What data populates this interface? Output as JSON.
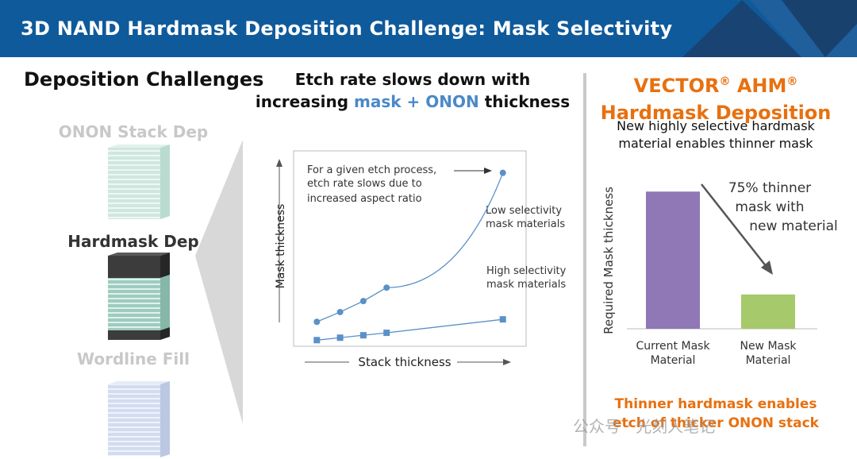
{
  "header": {
    "title": "3D NAND Hardmask Deposition Challenge: Mask Selectivity",
    "bg_color": "#0f5a9b"
  },
  "left": {
    "title": "Deposition Challenges",
    "stages": [
      {
        "label": "ONON Stack Dep",
        "state": "faded"
      },
      {
        "label": "Hardmask Dep",
        "state": "active"
      },
      {
        "label": "Wordline Fill",
        "state": "faded"
      }
    ]
  },
  "middle": {
    "title_line1": "Etch rate slows down with",
    "title_line2_pre": "increasing ",
    "title_line2_highlight": "mask + ONON",
    "title_line2_post": " thickness",
    "chart_data": {
      "type": "line",
      "xlabel": "Stack thickness",
      "ylabel": "Mask thickness",
      "x": [
        1,
        2,
        3,
        4,
        9
      ],
      "series": [
        {
          "name": "Low selectivity mask materials",
          "name_line1": "Low selectivity",
          "name_line2": "mask materials",
          "values": [
            2.0,
            2.8,
            3.7,
            4.8,
            14.2
          ],
          "marker": "circle"
        },
        {
          "name": "High selectivity mask materials",
          "name_line1": "High selectivity",
          "name_line2": "mask materials",
          "values": [
            0.5,
            0.7,
            0.9,
            1.1,
            2.2
          ],
          "marker": "square"
        }
      ],
      "xlim": [
        0,
        10
      ],
      "ylim": [
        0,
        16
      ],
      "annotation_lines": [
        "For a given etch process,",
        "etch rate slows due to",
        "increased aspect ratio"
      ],
      "line_color": "#5b90c8",
      "grid": false
    }
  },
  "right": {
    "brand_line1": "VECTOR",
    "brand_reg1": "®",
    "brand_mid": " AHM",
    "brand_reg2": "®",
    "brand_line2": "Hardmask Deposition",
    "subtitle": "New highly selective hardmask material enables thinner mask",
    "chart_data": {
      "type": "bar",
      "categories": [
        "Current Mask Material",
        "New Mask Material"
      ],
      "category_lines": [
        [
          "Current Mask",
          "Material"
        ],
        [
          "New Mask",
          "Material"
        ]
      ],
      "values": [
        100,
        25
      ],
      "colors": [
        "#8f78b5",
        "#a6c96b"
      ],
      "ylabel": "Required Mask thickness",
      "ylim": [
        0,
        110
      ],
      "annotation_lines": [
        "75% thinner",
        "mask with",
        "new material"
      ]
    },
    "bottom_note": "Thinner hardmask enables etch of thicker ONON stack"
  },
  "watermark": "公众号 · 光刻人笔记",
  "colors": {
    "accent_orange": "#e8700f",
    "highlight_blue": "#4a89c8",
    "faded_text": "#c8c8c8",
    "active_text": "#333333"
  }
}
